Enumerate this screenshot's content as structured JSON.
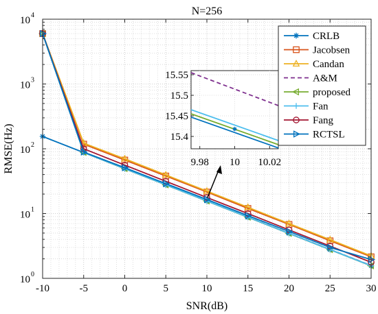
{
  "chart_data": {
    "type": "line",
    "title": "N=256",
    "xlabel": "SNR(dB)",
    "ylabel": "RMSE(Hz)",
    "xlim": [
      -10,
      30
    ],
    "ylim_exp": [
      0,
      4
    ],
    "yscale": "log",
    "grid": true,
    "minor_grid": true,
    "legend_position": "top-right",
    "x": [
      -10,
      -5,
      0,
      5,
      10,
      15,
      20,
      25,
      30
    ],
    "x_tick_labels": [
      "-10",
      "-5",
      "0",
      "5",
      "10",
      "15",
      "20",
      "25",
      "30"
    ],
    "y_tick_labels": [
      {
        "base": "10",
        "exp": "0"
      },
      {
        "base": "10",
        "exp": "1"
      },
      {
        "base": "10",
        "exp": "2"
      },
      {
        "base": "10",
        "exp": "3"
      },
      {
        "base": "10",
        "exp": "4"
      }
    ],
    "series": [
      {
        "name": "CRLB",
        "color": "#0072BD",
        "dash": "",
        "marker": "star",
        "values": [
          155,
          87.5,
          49.2,
          27.7,
          15.6,
          8.76,
          4.93,
          2.77,
          1.56
        ]
      },
      {
        "name": "Jacobsen",
        "color": "#D95319",
        "dash": "",
        "marker": "square",
        "values": [
          6000,
          118,
          67,
          38,
          21.5,
          12,
          6.8,
          3.8,
          2.15
        ]
      },
      {
        "name": "Candan",
        "color": "#EDB120",
        "dash": "",
        "marker": "triangle",
        "values": [
          6000,
          122,
          70,
          39.5,
          22.2,
          12.5,
          7.0,
          3.95,
          2.22
        ]
      },
      {
        "name": "A&M",
        "color": "#7E2F8E",
        "dash": "6,4",
        "marker": "none",
        "values": [
          6000,
          88.5,
          49.8,
          28.0,
          15.75,
          8.86,
          4.98,
          2.8,
          1.58
        ]
      },
      {
        "name": "proposed",
        "color": "#77AC30",
        "dash": "",
        "marker": "triangle-left",
        "values": [
          6000,
          88.0,
          49.5,
          27.8,
          15.65,
          8.8,
          4.95,
          2.78,
          1.565
        ]
      },
      {
        "name": "Fan",
        "color": "#4DBEEE",
        "dash": "",
        "marker": "plus",
        "values": [
          6000,
          88.2,
          49.6,
          27.9,
          15.7,
          8.82,
          4.96,
          2.79,
          1.57
        ]
      },
      {
        "name": "Fang",
        "color": "#A2142F",
        "dash": "",
        "marker": "circle",
        "values": [
          6000,
          100,
          56,
          31.5,
          17.7,
          10,
          5.6,
          3.15,
          1.77
        ]
      },
      {
        "name": "RCTSL",
        "color": "#0072BD",
        "dash": "",
        "marker": "triangle-right",
        "values": [
          6000,
          89,
          51,
          29,
          16.5,
          9.3,
          5.3,
          3.0,
          1.95
        ]
      }
    ],
    "inset": {
      "xlim": [
        9.975,
        10.025
      ],
      "ylim": [
        15.37,
        15.56
      ],
      "x_ticks": [
        9.98,
        10,
        10.02
      ],
      "x_tick_labels": [
        "9.98",
        "10",
        "10.02"
      ],
      "y_ticks": [
        15.4,
        15.45,
        15.5,
        15.55
      ],
      "y_tick_labels": [
        "15.4",
        "15.45",
        "15.5",
        "15.55"
      ],
      "lines": [
        {
          "series": "A&M",
          "y_at_xmin": 15.555,
          "y_at_xmax": 15.475
        },
        {
          "series": "Fan",
          "y_at_xmin": 15.465,
          "y_at_xmax": 15.39
        },
        {
          "series": "proposed",
          "y_at_xmin": 15.455,
          "y_at_xmax": 15.38
        },
        {
          "series": "CRLB",
          "y_at_xmin": 15.447,
          "y_at_xmax": 15.372
        }
      ],
      "marker_x": 10,
      "marker_y": 15.418
    }
  }
}
